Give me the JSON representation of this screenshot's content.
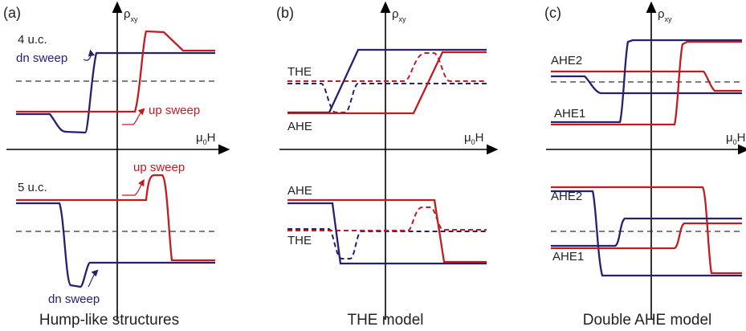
{
  "colors": {
    "blue": "#252070",
    "red": "#c41a22",
    "axis": "#000000",
    "dash": "#333333"
  },
  "panels": {
    "a": {
      "label": "(a)",
      "caption": "Hump-like structures",
      "y_axis_main": "ρ",
      "y_axis_sub": "xy",
      "x_axis_main": "μ",
      "x_axis_sub": "0",
      "x_axis_tail": "H",
      "top_title": "4 u.c.",
      "top_dn": "dn sweep",
      "top_up": "up sweep",
      "bottom_title": "5 u.c.",
      "bottom_up": "up sweep",
      "bottom_dn": "dn sweep"
    },
    "b": {
      "label": "(b)",
      "caption": "THE model",
      "y_axis_main": "ρ",
      "y_axis_sub": "xy",
      "x_axis_main": "μ",
      "x_axis_sub": "0",
      "x_axis_tail": "H",
      "top_the": "THE",
      "top_ahe": "AHE",
      "bottom_ahe": "AHE",
      "bottom_the": "THE"
    },
    "c": {
      "label": "(c)",
      "caption": "Double AHE model",
      "y_axis_main": "ρ",
      "y_axis_sub": "xy",
      "x_axis_main": "μ",
      "x_axis_sub": "0",
      "x_axis_tail": "H",
      "top_ahe2": "AHE2",
      "top_ahe1": "AHE1",
      "bottom_ahe2": "AHE2",
      "bottom_ahe1": "AHE1"
    }
  }
}
